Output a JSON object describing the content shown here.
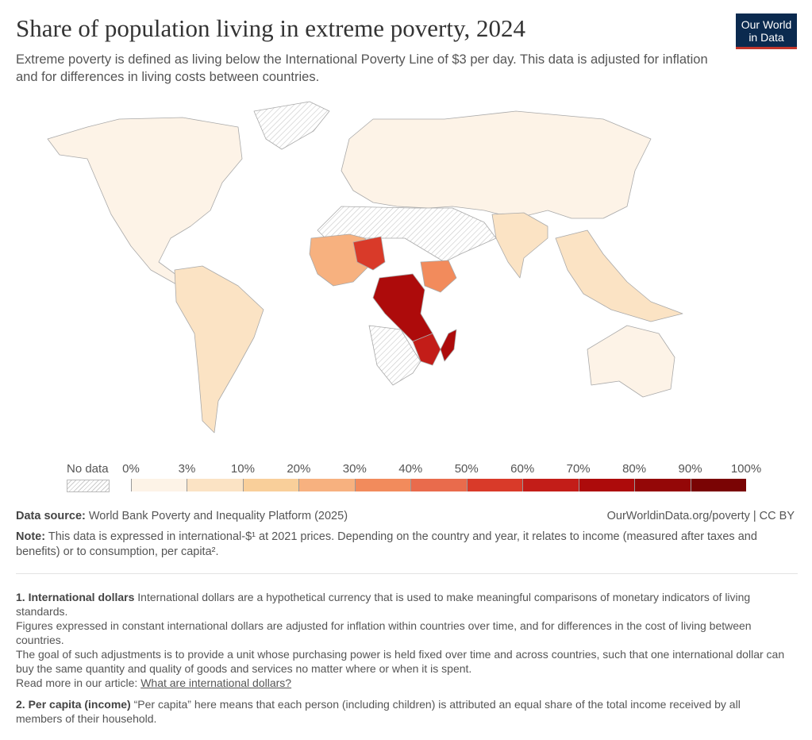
{
  "header": {
    "title": "Share of population living in extreme poverty, 2024",
    "subtitle": "Extreme poverty is defined as living below the International Poverty Line of $3 per day. This data is adjusted for inflation and for differences in living costs between countries.",
    "logo": "Our World in Data"
  },
  "chart_data": {
    "type": "choropleth-map",
    "title": "Share of population living in extreme poverty, 2024",
    "legend": {
      "no_data_label": "No data",
      "ticks": [
        "0%",
        "3%",
        "10%",
        "20%",
        "30%",
        "40%",
        "50%",
        "60%",
        "70%",
        "80%",
        "90%",
        "100%"
      ],
      "bins": [
        {
          "range": [
            0,
            3
          ],
          "color": "#fdf3e7"
        },
        {
          "range": [
            3,
            10
          ],
          "color": "#fbe3c4"
        },
        {
          "range": [
            10,
            20
          ],
          "color": "#f9cf9a"
        },
        {
          "range": [
            20,
            30
          ],
          "color": "#f7b17f"
        },
        {
          "range": [
            30,
            40
          ],
          "color": "#f28b5c"
        },
        {
          "range": [
            40,
            50
          ],
          "color": "#e96b4c"
        },
        {
          "range": [
            50,
            60
          ],
          "color": "#d93a29"
        },
        {
          "range": [
            60,
            70
          ],
          "color": "#c31d18"
        },
        {
          "range": [
            70,
            80
          ],
          "color": "#ad0b0b"
        },
        {
          "range": [
            80,
            90
          ],
          "color": "#940707"
        },
        {
          "range": [
            90,
            100
          ],
          "color": "#7a0404"
        }
      ]
    },
    "regions": [
      {
        "name": "North America",
        "bin": "0-3%"
      },
      {
        "name": "Greenland",
        "bin": "No data"
      },
      {
        "name": "South America",
        "bin": "3-10%"
      },
      {
        "name": "Europe & Central Asia",
        "bin": "0-3%"
      },
      {
        "name": "South Asia",
        "bin": "3-10%"
      },
      {
        "name": "Southeast Asia",
        "bin": "3-10%"
      },
      {
        "name": "Australia",
        "bin": "0-3%"
      },
      {
        "name": "North Africa & Middle East",
        "bin": "No data"
      },
      {
        "name": "West Africa",
        "bin": "20-30%"
      },
      {
        "name": "Sahel (Niger)",
        "bin": "50-60%"
      },
      {
        "name": "Ethiopia",
        "bin": "30-40%"
      },
      {
        "name": "DR Congo",
        "bin": "70-80%"
      },
      {
        "name": "Mozambique / Malawi",
        "bin": "60-70%"
      },
      {
        "name": "Madagascar",
        "bin": "70-80%"
      },
      {
        "name": "Southern Africa",
        "bin": "No data"
      }
    ]
  },
  "footer": {
    "source_label": "Data source:",
    "source_text": "World Bank Poverty and Inequality Platform (2025)",
    "url": "OurWorldinData.org/poverty | CC BY",
    "note_label": "Note:",
    "note_text": "This data is expressed in international-$¹ at 2021 prices. Depending on the country and year, it relates to income (measured after taxes and benefits) or to consumption, per capita².",
    "fn1_title": "1. International dollars",
    "fn1_p1": "International dollars are a hypothetical currency that is used to make meaningful comparisons of monetary indicators of living standards.",
    "fn1_p2": "Figures expressed in constant international dollars are adjusted for inflation within countries over time, and for differences in the cost of living between countries.",
    "fn1_p3": "The goal of such adjustments is to provide a unit whose purchasing power is held fixed over time and across countries, such that one international dollar can buy the same quantity and quality of goods and services no matter where or when it is spent.",
    "fn1_read": "Read more in our article:",
    "fn1_link": "What are international dollars?",
    "fn2_title": "2. Per capita (income)",
    "fn2_text": "“Per capita” here means that each person (including children) is attributed an equal share of the total income received by all members of their household."
  }
}
